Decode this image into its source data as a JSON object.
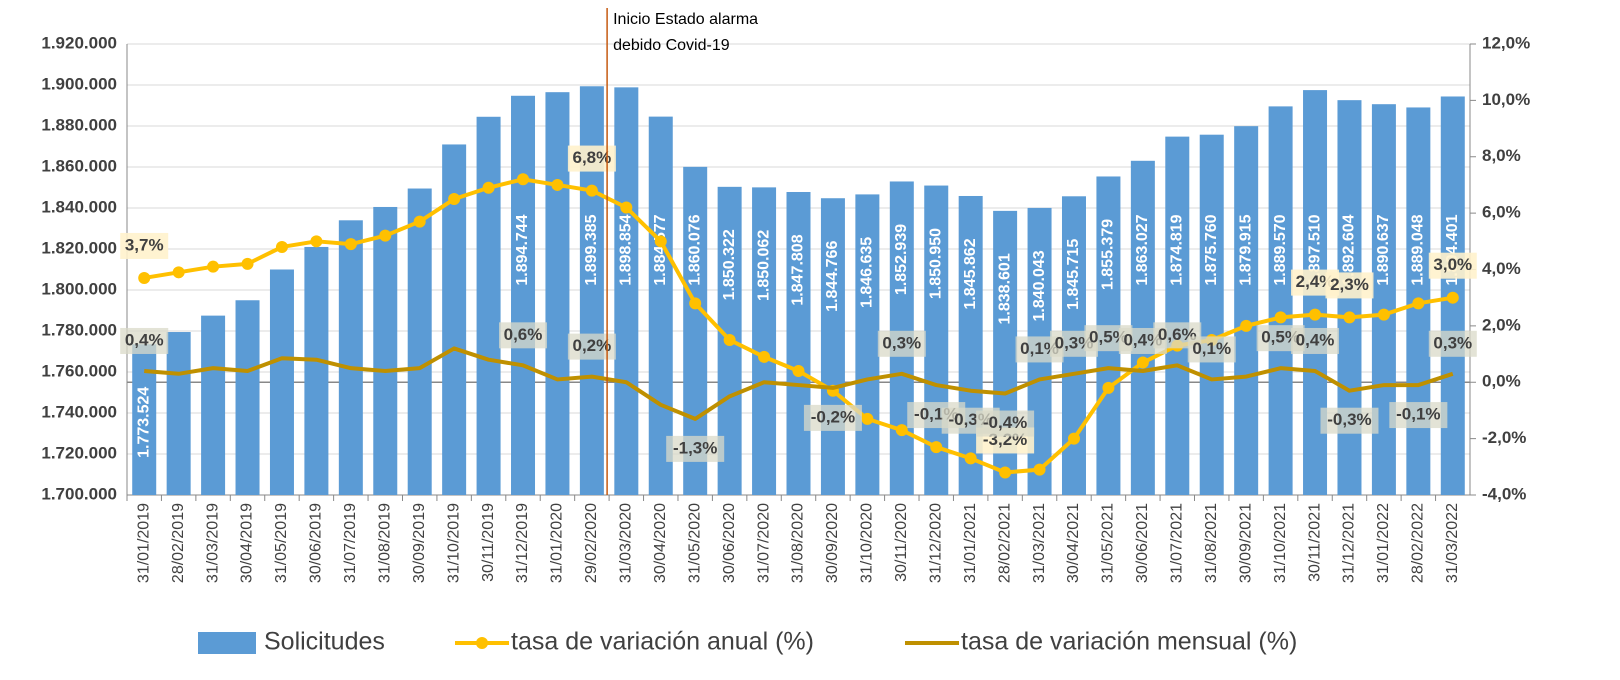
{
  "chart_data": {
    "type": "bar",
    "categories": [
      "31/01/2019",
      "28/02/2019",
      "31/03/2019",
      "30/04/2019",
      "31/05/2019",
      "30/06/2019",
      "31/07/2019",
      "31/08/2019",
      "30/09/2019",
      "31/10/2019",
      "30/11/2019",
      "31/12/2019",
      "31/01/2020",
      "29/02/2020",
      "31/03/2020",
      "30/04/2020",
      "31/05/2020",
      "30/06/2020",
      "31/07/2020",
      "31/08/2020",
      "30/09/2020",
      "31/10/2020",
      "30/11/2020",
      "31/12/2020",
      "31/01/2021",
      "28/02/2021",
      "31/03/2021",
      "30/04/2021",
      "31/05/2021",
      "30/06/2021",
      "31/07/2021",
      "31/08/2021",
      "30/09/2021",
      "31/10/2021",
      "30/11/2021",
      "31/12/2021",
      "31/01/2022",
      "28/02/2022",
      "31/03/2022"
    ],
    "series": [
      {
        "name": "Solicitudes",
        "type": "bar",
        "axis": "y",
        "color": "#5b9bd5",
        "values": [
          1773524,
          1779500,
          1787500,
          1795000,
          1810000,
          1821000,
          1834000,
          1840500,
          1849500,
          1871000,
          1884500,
          1894744,
          1896500,
          1899385,
          1898854,
          1884577,
          1860076,
          1850322,
          1850062,
          1847808,
          1844766,
          1846635,
          1852939,
          1850950,
          1845862,
          1838601,
          1840043,
          1845715,
          1855379,
          1863027,
          1874819,
          1875760,
          1879915,
          1889570,
          1897510,
          1892604,
          1890637,
          1889048,
          1894401
        ],
        "value_labels": [
          "1.773.524",
          null,
          null,
          null,
          null,
          null,
          null,
          null,
          null,
          null,
          null,
          "1.894.744",
          null,
          "1.899.385",
          "1.898.854",
          "1.884.577",
          "1.860.076",
          "1.850.322",
          "1.850.062",
          "1.847.808",
          "1.844.766",
          "1.846.635",
          "1.852.939",
          "1.850.950",
          "1.845.862",
          "1.838.601",
          "1.840.043",
          "1.845.715",
          "1.855.379",
          "1.863.027",
          "1.874.819",
          "1.875.760",
          "1.879.915",
          "1.889.570",
          "1.897.510",
          "1.892.604",
          "1.890.637",
          "1.889.048",
          "1.894.401"
        ]
      },
      {
        "name": "tasa de variación anual (%)",
        "type": "line",
        "axis": "y2",
        "color": "#ffc000",
        "markers": true,
        "values": [
          3.7,
          3.9,
          4.1,
          4.2,
          4.8,
          5.0,
          4.9,
          5.2,
          5.7,
          6.5,
          6.9,
          7.2,
          7.0,
          6.8,
          6.2,
          5.0,
          2.8,
          1.5,
          0.9,
          0.4,
          -0.3,
          -1.3,
          -1.7,
          -2.3,
          -2.7,
          -3.2,
          -3.1,
          -2.0,
          -0.2,
          0.7,
          1.3,
          1.5,
          2.0,
          2.3,
          2.4,
          2.3,
          2.4,
          2.8,
          3.0
        ],
        "value_labels": [
          "3,7%",
          null,
          null,
          null,
          null,
          null,
          null,
          null,
          null,
          null,
          null,
          null,
          null,
          "6,8%",
          null,
          null,
          null,
          null,
          null,
          null,
          null,
          null,
          null,
          null,
          null,
          "-3,2%",
          null,
          null,
          null,
          null,
          null,
          null,
          null,
          null,
          "2,4%",
          "2,3%",
          null,
          null,
          "3,0%"
        ]
      },
      {
        "name": "tasa de variación mensual (%)",
        "type": "line",
        "axis": "y2",
        "color": "#bf9000",
        "markers": false,
        "values": [
          0.4,
          0.3,
          0.5,
          0.4,
          0.85,
          0.8,
          0.5,
          0.4,
          0.5,
          1.2,
          0.8,
          0.6,
          0.1,
          0.2,
          0.0,
          -0.8,
          -1.3,
          -0.5,
          0.0,
          -0.1,
          -0.2,
          0.1,
          0.3,
          -0.1,
          -0.3,
          -0.4,
          0.1,
          0.3,
          0.5,
          0.4,
          0.6,
          0.1,
          0.2,
          0.5,
          0.4,
          -0.3,
          -0.1,
          -0.1,
          0.3
        ],
        "value_labels": [
          "0,4%",
          null,
          null,
          null,
          null,
          null,
          null,
          null,
          null,
          null,
          null,
          "0,6%",
          null,
          "0,2%",
          null,
          null,
          "-1,3%",
          null,
          null,
          null,
          "-0,2%",
          null,
          "0,3%",
          "-0,1%",
          "-0,3%",
          "-0,4%",
          "0,1%",
          "0,3%",
          "0,5%",
          "0,4%",
          "0,6%",
          "0,1%",
          null,
          "0,5%",
          "0,4%",
          "-0,3%",
          null,
          "-0,1%",
          "0,3%"
        ]
      }
    ],
    "ylim": [
      1700000,
      1920000
    ],
    "yticks": [
      {
        "value": 1700000,
        "label": "1.700.000"
      },
      {
        "value": 1720000,
        "label": "1.720.000"
      },
      {
        "value": 1740000,
        "label": "1.740.000"
      },
      {
        "value": 1760000,
        "label": "1.760.000"
      },
      {
        "value": 1780000,
        "label": "1.780.000"
      },
      {
        "value": 1800000,
        "label": "1.800.000"
      },
      {
        "value": 1820000,
        "label": "1.820.000"
      },
      {
        "value": 1840000,
        "label": "1.840.000"
      },
      {
        "value": 1860000,
        "label": "1.860.000"
      },
      {
        "value": 1880000,
        "label": "1.880.000"
      },
      {
        "value": 1900000,
        "label": "1.900.000"
      },
      {
        "value": 1920000,
        "label": "1.920.000"
      }
    ],
    "y2lim": [
      -4,
      12
    ],
    "y2ticks": [
      {
        "value": -4,
        "label": "-4,0%"
      },
      {
        "value": -2,
        "label": "-2,0%"
      },
      {
        "value": 0,
        "label": "0,0%"
      },
      {
        "value": 2,
        "label": "2,0%"
      },
      {
        "value": 4,
        "label": "4,0%"
      },
      {
        "value": 6,
        "label": "6,0%"
      },
      {
        "value": 8,
        "label": "8,0%"
      },
      {
        "value": 10,
        "label": "10,0%"
      },
      {
        "value": 12,
        "label": "12,0%"
      }
    ],
    "annotation": [
      "Inicio Estado alarma",
      "debido Covid-19"
    ],
    "grid": true,
    "legend": "bottom"
  }
}
